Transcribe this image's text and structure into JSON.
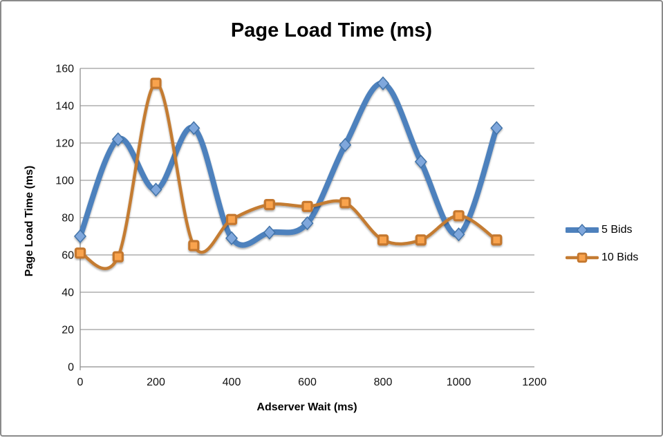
{
  "chart_data": {
    "type": "line",
    "title": "Page Load Time (ms)",
    "xlabel": "Adserver Wait (ms)",
    "ylabel": "Page Load Time (ms)",
    "x": [
      0,
      100,
      200,
      300,
      400,
      500,
      600,
      700,
      800,
      900,
      1000,
      1100
    ],
    "series": [
      {
        "name": "5 Bids",
        "values": [
          70,
          122,
          95,
          128,
          69,
          72,
          77,
          119,
          152,
          110,
          71,
          128
        ],
        "color": "#4E81BD",
        "line_width": 8,
        "marker": "diamond",
        "marker_fill": "#7FA7DC",
        "marker_stroke": "#4273A8"
      },
      {
        "name": "10 Bids",
        "values": [
          61,
          59,
          152,
          65,
          79,
          87,
          86,
          88,
          68,
          68,
          81,
          68
        ],
        "color": "#C47B32",
        "line_width": 4.5,
        "marker": "square",
        "marker_fill": "#F9A34D",
        "marker_stroke": "#C4772E"
      }
    ],
    "xlim": [
      0,
      1200
    ],
    "ylim": [
      0,
      160
    ],
    "x_ticks": [
      0,
      200,
      400,
      600,
      800,
      1000,
      1200
    ],
    "y_ticks": [
      0,
      20,
      40,
      60,
      80,
      100,
      120,
      140,
      160
    ],
    "grid": true,
    "smooth": true,
    "legend_position": "right",
    "colors": {
      "gridline": "#858585",
      "axis": "#8e8e8e",
      "text": "#111111",
      "frame_border": "#8a8a8a",
      "background": "#ffffff"
    }
  }
}
